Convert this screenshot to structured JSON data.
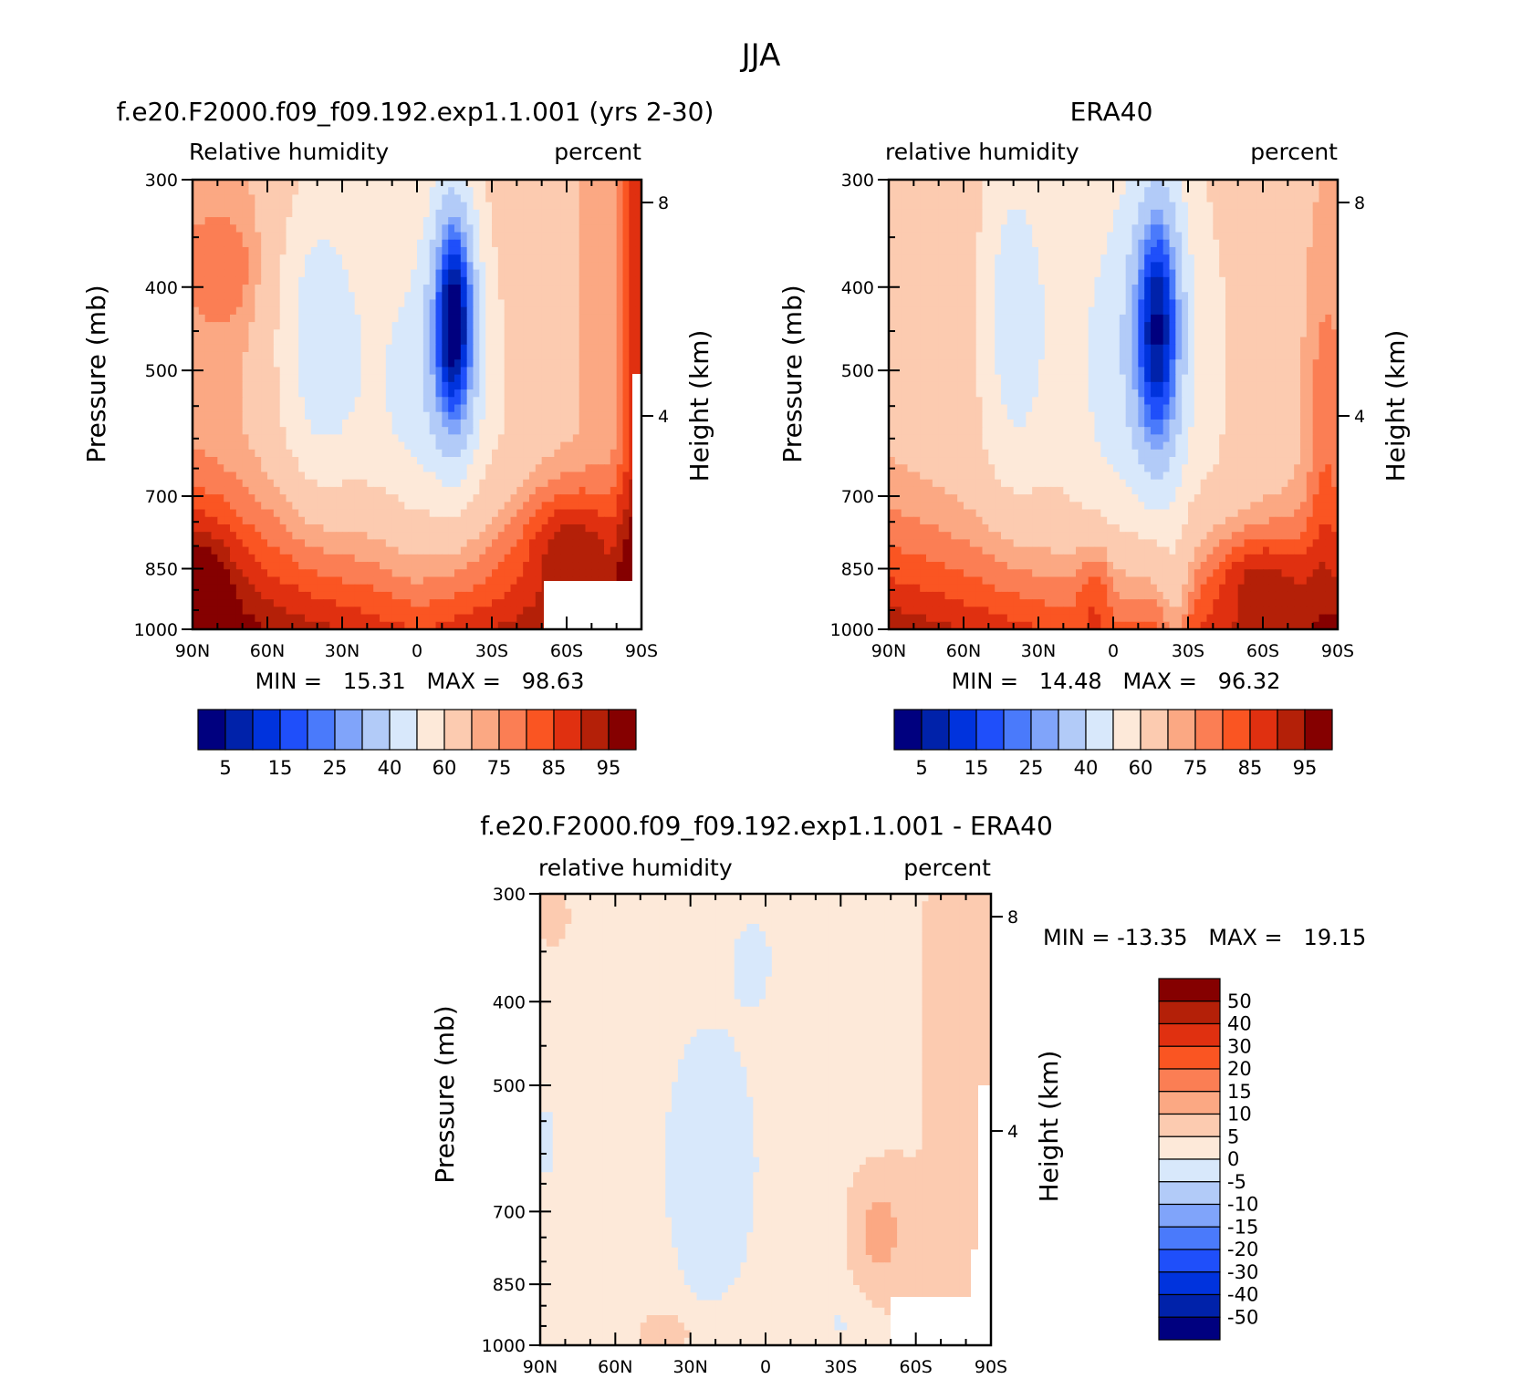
{
  "figure": {
    "title": "JJA",
    "colors": {
      "rh": [
        "#00007f",
        "#0022aa",
        "#0033dd",
        "#1f4ffa",
        "#4a7afb",
        "#80a4fa",
        "#b2cbf8",
        "#d8e8fb",
        "#fde9d9",
        "#fccbb0",
        "#fba883",
        "#fb7e54",
        "#fa5522",
        "#e03010",
        "#b42008",
        "#850000"
      ],
      "diff": [
        "#00007f",
        "#0022aa",
        "#0033dd",
        "#1f4ffa",
        "#4a7afb",
        "#80a4fa",
        "#b2cbf8",
        "#d8e8fb",
        "#fde9d9",
        "#fccbb0",
        "#fba883",
        "#fb7e54",
        "#fa5522",
        "#e03010",
        "#b42008",
        "#850000"
      ]
    }
  },
  "chart_data": [
    {
      "type": "heatmap",
      "id": "model",
      "title": "f.e20.F2000.f09_f09.192.exp1.1.001 (yrs 2-30)",
      "left_label": "Relative humidity",
      "right_label": "percent",
      "xlabel": "",
      "ylabel": "Pressure (mb)",
      "y2label": "Height (km)",
      "x_ticks": [
        "90N",
        "60N",
        "30N",
        "0",
        "30S",
        "60S",
        "90S"
      ],
      "y_ticks": [
        "300",
        "400",
        "500",
        "700",
        "850",
        "1000"
      ],
      "y_values": [
        300,
        400,
        500,
        700,
        850,
        1000
      ],
      "y2_ticks": [
        "8",
        "4"
      ],
      "y2_values": [
        8,
        4
      ],
      "x_range": [
        90,
        -90
      ],
      "y_range": [
        300,
        1000
      ],
      "stats": "MIN =   15.31   MAX =   98.63",
      "colorbar_labels": [
        "5",
        "15",
        "25",
        "40",
        "60",
        "75",
        "85",
        "95"
      ],
      "levels": [
        5,
        10,
        15,
        20,
        25,
        30,
        40,
        50,
        60,
        70,
        75,
        80,
        85,
        90,
        95
      ],
      "grid": false
    },
    {
      "type": "heatmap",
      "id": "obs",
      "title": "ERA40",
      "left_label": "relative humidity",
      "right_label": "percent",
      "xlabel": "",
      "ylabel": "Pressure (mb)",
      "y2label": "Height (km)",
      "x_ticks": [
        "90N",
        "60N",
        "30N",
        "0",
        "30S",
        "60S",
        "90S"
      ],
      "y_ticks": [
        "300",
        "400",
        "500",
        "700",
        "850",
        "1000"
      ],
      "y_values": [
        300,
        400,
        500,
        700,
        850,
        1000
      ],
      "y2_ticks": [
        "8",
        "4"
      ],
      "y2_values": [
        8,
        4
      ],
      "x_range": [
        90,
        -90
      ],
      "y_range": [
        300,
        1000
      ],
      "stats": "MIN =   14.48   MAX =   96.32",
      "colorbar_labels": [
        "5",
        "15",
        "25",
        "40",
        "60",
        "75",
        "85",
        "95"
      ],
      "levels": [
        5,
        10,
        15,
        20,
        25,
        30,
        40,
        50,
        60,
        70,
        75,
        80,
        85,
        90,
        95
      ],
      "grid": false
    },
    {
      "type": "heatmap",
      "id": "diff",
      "title": "f.e20.F2000.f09_f09.192.exp1.1.001 - ERA40",
      "left_label": "relative humidity",
      "right_label": "percent",
      "xlabel": "",
      "ylabel": "Pressure (mb)",
      "y2label": "Height (km)",
      "x_ticks": [
        "90N",
        "60N",
        "30N",
        "0",
        "30S",
        "60S",
        "90S"
      ],
      "y_ticks": [
        "300",
        "400",
        "500",
        "700",
        "850",
        "1000"
      ],
      "y_values": [
        300,
        400,
        500,
        700,
        850,
        1000
      ],
      "y2_ticks": [
        "8",
        "4"
      ],
      "y2_values": [
        8,
        4
      ],
      "x_range": [
        90,
        -90
      ],
      "y_range": [
        300,
        1000
      ],
      "stats": "MIN = -13.35   MAX =   19.15",
      "colorbar_labels": [
        "50",
        "40",
        "30",
        "20",
        "15",
        "10",
        "5",
        "0",
        "-5",
        "-10",
        "-15",
        "-20",
        "-30",
        "-40",
        "-50"
      ],
      "levels": [
        -50,
        -40,
        -30,
        -20,
        -15,
        -10,
        -5,
        0,
        5,
        10,
        15,
        20,
        30,
        40,
        50
      ],
      "grid": false
    }
  ]
}
